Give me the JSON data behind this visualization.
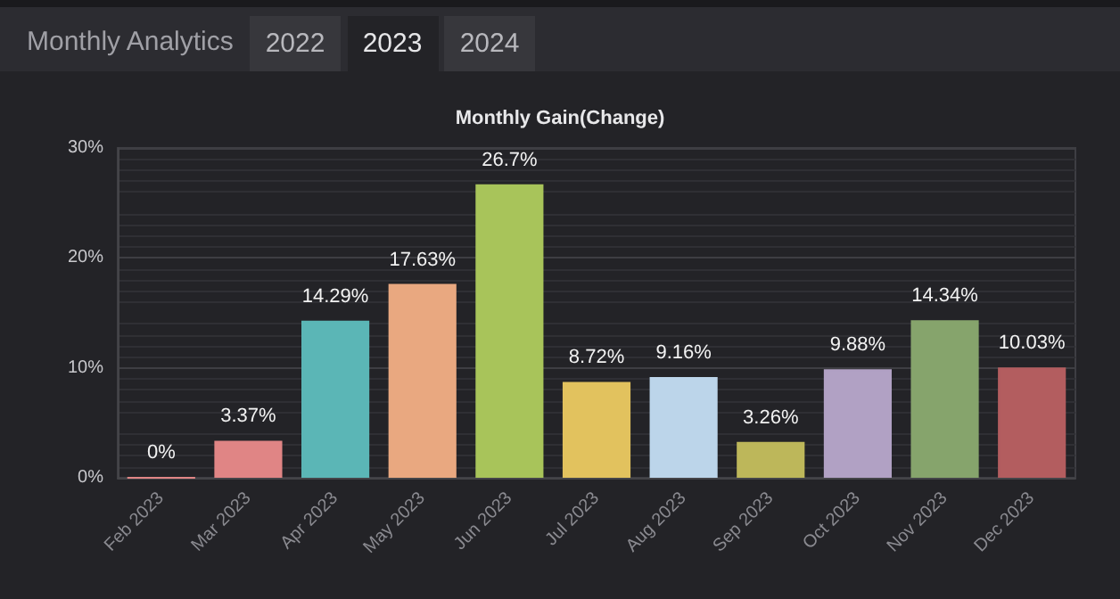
{
  "chart_data": {
    "type": "bar",
    "title": "Monthly Analytics",
    "subtitle": "Monthly Gain(Change)",
    "annotations": [
      "2022",
      "2023",
      "2024"
    ],
    "categories": [
      "Feb 2023",
      "Mar 2023",
      "Apr 2023",
      "May 2023",
      "Jun 2023",
      "Jul 2023",
      "Aug 2023",
      "Sep 2023",
      "Oct 2023",
      "Nov 2023",
      "Dec 2023"
    ],
    "values": [
      0,
      3.37,
      14.29,
      17.63,
      26.7,
      8.72,
      9.16,
      3.26,
      9.88,
      14.34,
      10.03
    ],
    "value_labels": [
      "0%",
      "3.37%",
      "14.29%",
      "17.63%",
      "26.7%",
      "8.72%",
      "9.16%",
      "3.26%",
      "9.88%",
      "14.34%",
      "10.03%"
    ],
    "colors": [
      "#e08585",
      "#e08585",
      "#5bb6b6",
      "#e9a880",
      "#a8c45a",
      "#e2c25e",
      "#bcd5ea",
      "#bdb75a",
      "#b1a1c4",
      "#86a46c",
      "#b35d5f"
    ],
    "ylim": [
      0,
      30
    ],
    "yticks": [
      {
        "value": 0,
        "label": "0%"
      },
      {
        "value": 10,
        "label": "10%"
      },
      {
        "value": 20,
        "label": "20%"
      },
      {
        "value": 30,
        "label": "30%"
      }
    ],
    "grid": "y"
  }
}
